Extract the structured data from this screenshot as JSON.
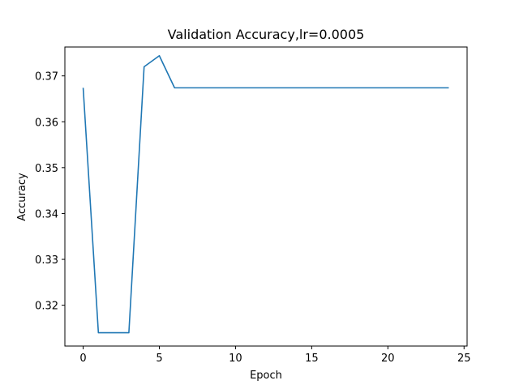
{
  "chart_data": {
    "type": "line",
    "title": "Validation Accuracy,lr=0.0005",
    "xlabel": "Epoch",
    "ylabel": "Accuracy",
    "xlim": [
      -1.2,
      25.2
    ],
    "ylim": [
      0.3111,
      0.3763
    ],
    "xticks": [
      0,
      5,
      10,
      15,
      20,
      25
    ],
    "xtick_labels": [
      "0",
      "5",
      "10",
      "15",
      "20",
      "25"
    ],
    "yticks": [
      0.32,
      0.33,
      0.34,
      0.35,
      0.36,
      0.37
    ],
    "ytick_labels": [
      "0.32",
      "0.33",
      "0.34",
      "0.35",
      "0.36",
      "0.37"
    ],
    "grid": false,
    "legend": false,
    "series": [
      {
        "color": "#1f77b4",
        "x": [
          0,
          1,
          2,
          3,
          4,
          5,
          6,
          7,
          8,
          9,
          10,
          11,
          12,
          13,
          14,
          15,
          16,
          17,
          18,
          19,
          20,
          21,
          22,
          23,
          24
        ],
        "values": [
          0.3674,
          0.314,
          0.314,
          0.314,
          0.372,
          0.3744,
          0.3674,
          0.3674,
          0.3674,
          0.3674,
          0.3674,
          0.3674,
          0.3674,
          0.3674,
          0.3674,
          0.3674,
          0.3674,
          0.3674,
          0.3674,
          0.3674,
          0.3674,
          0.3674,
          0.3674,
          0.3674,
          0.3674
        ]
      }
    ]
  }
}
